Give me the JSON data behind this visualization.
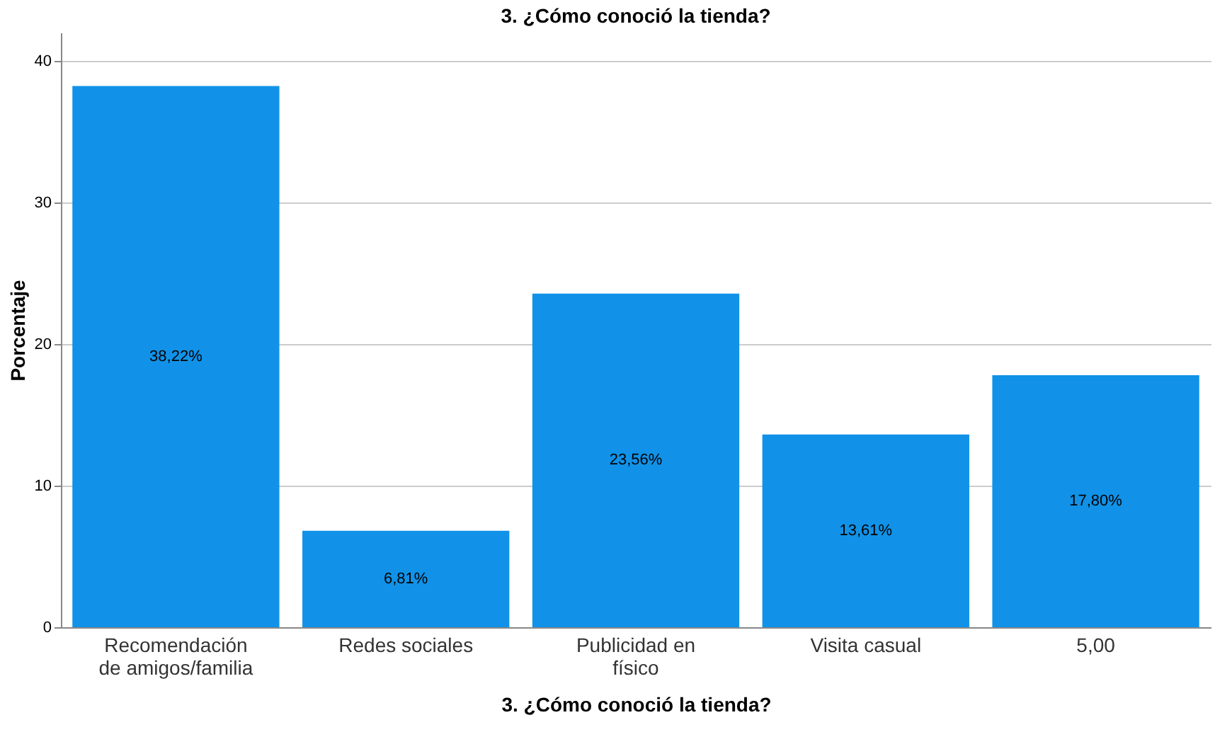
{
  "chart_data": {
    "type": "bar",
    "title": "3. ¿Cómo conoció la tienda?",
    "xlabel": "3. ¿Cómo conoció la tienda?",
    "ylabel": "Porcentaje",
    "categories": [
      "Recomendación\nde amigos/familia",
      "Redes sociales",
      "Publicidad en\nfísico",
      "Visita casual",
      "5,00"
    ],
    "values": [
      38.22,
      6.81,
      23.56,
      13.61,
      17.8
    ],
    "value_labels": [
      "38,22%",
      "6,81%",
      "23,56%",
      "13,61%",
      "17,80%"
    ],
    "color": "#1192e8",
    "ylim": [
      0,
      42
    ],
    "yticks": [
      0,
      10,
      20,
      30,
      40
    ],
    "grid": "y"
  }
}
